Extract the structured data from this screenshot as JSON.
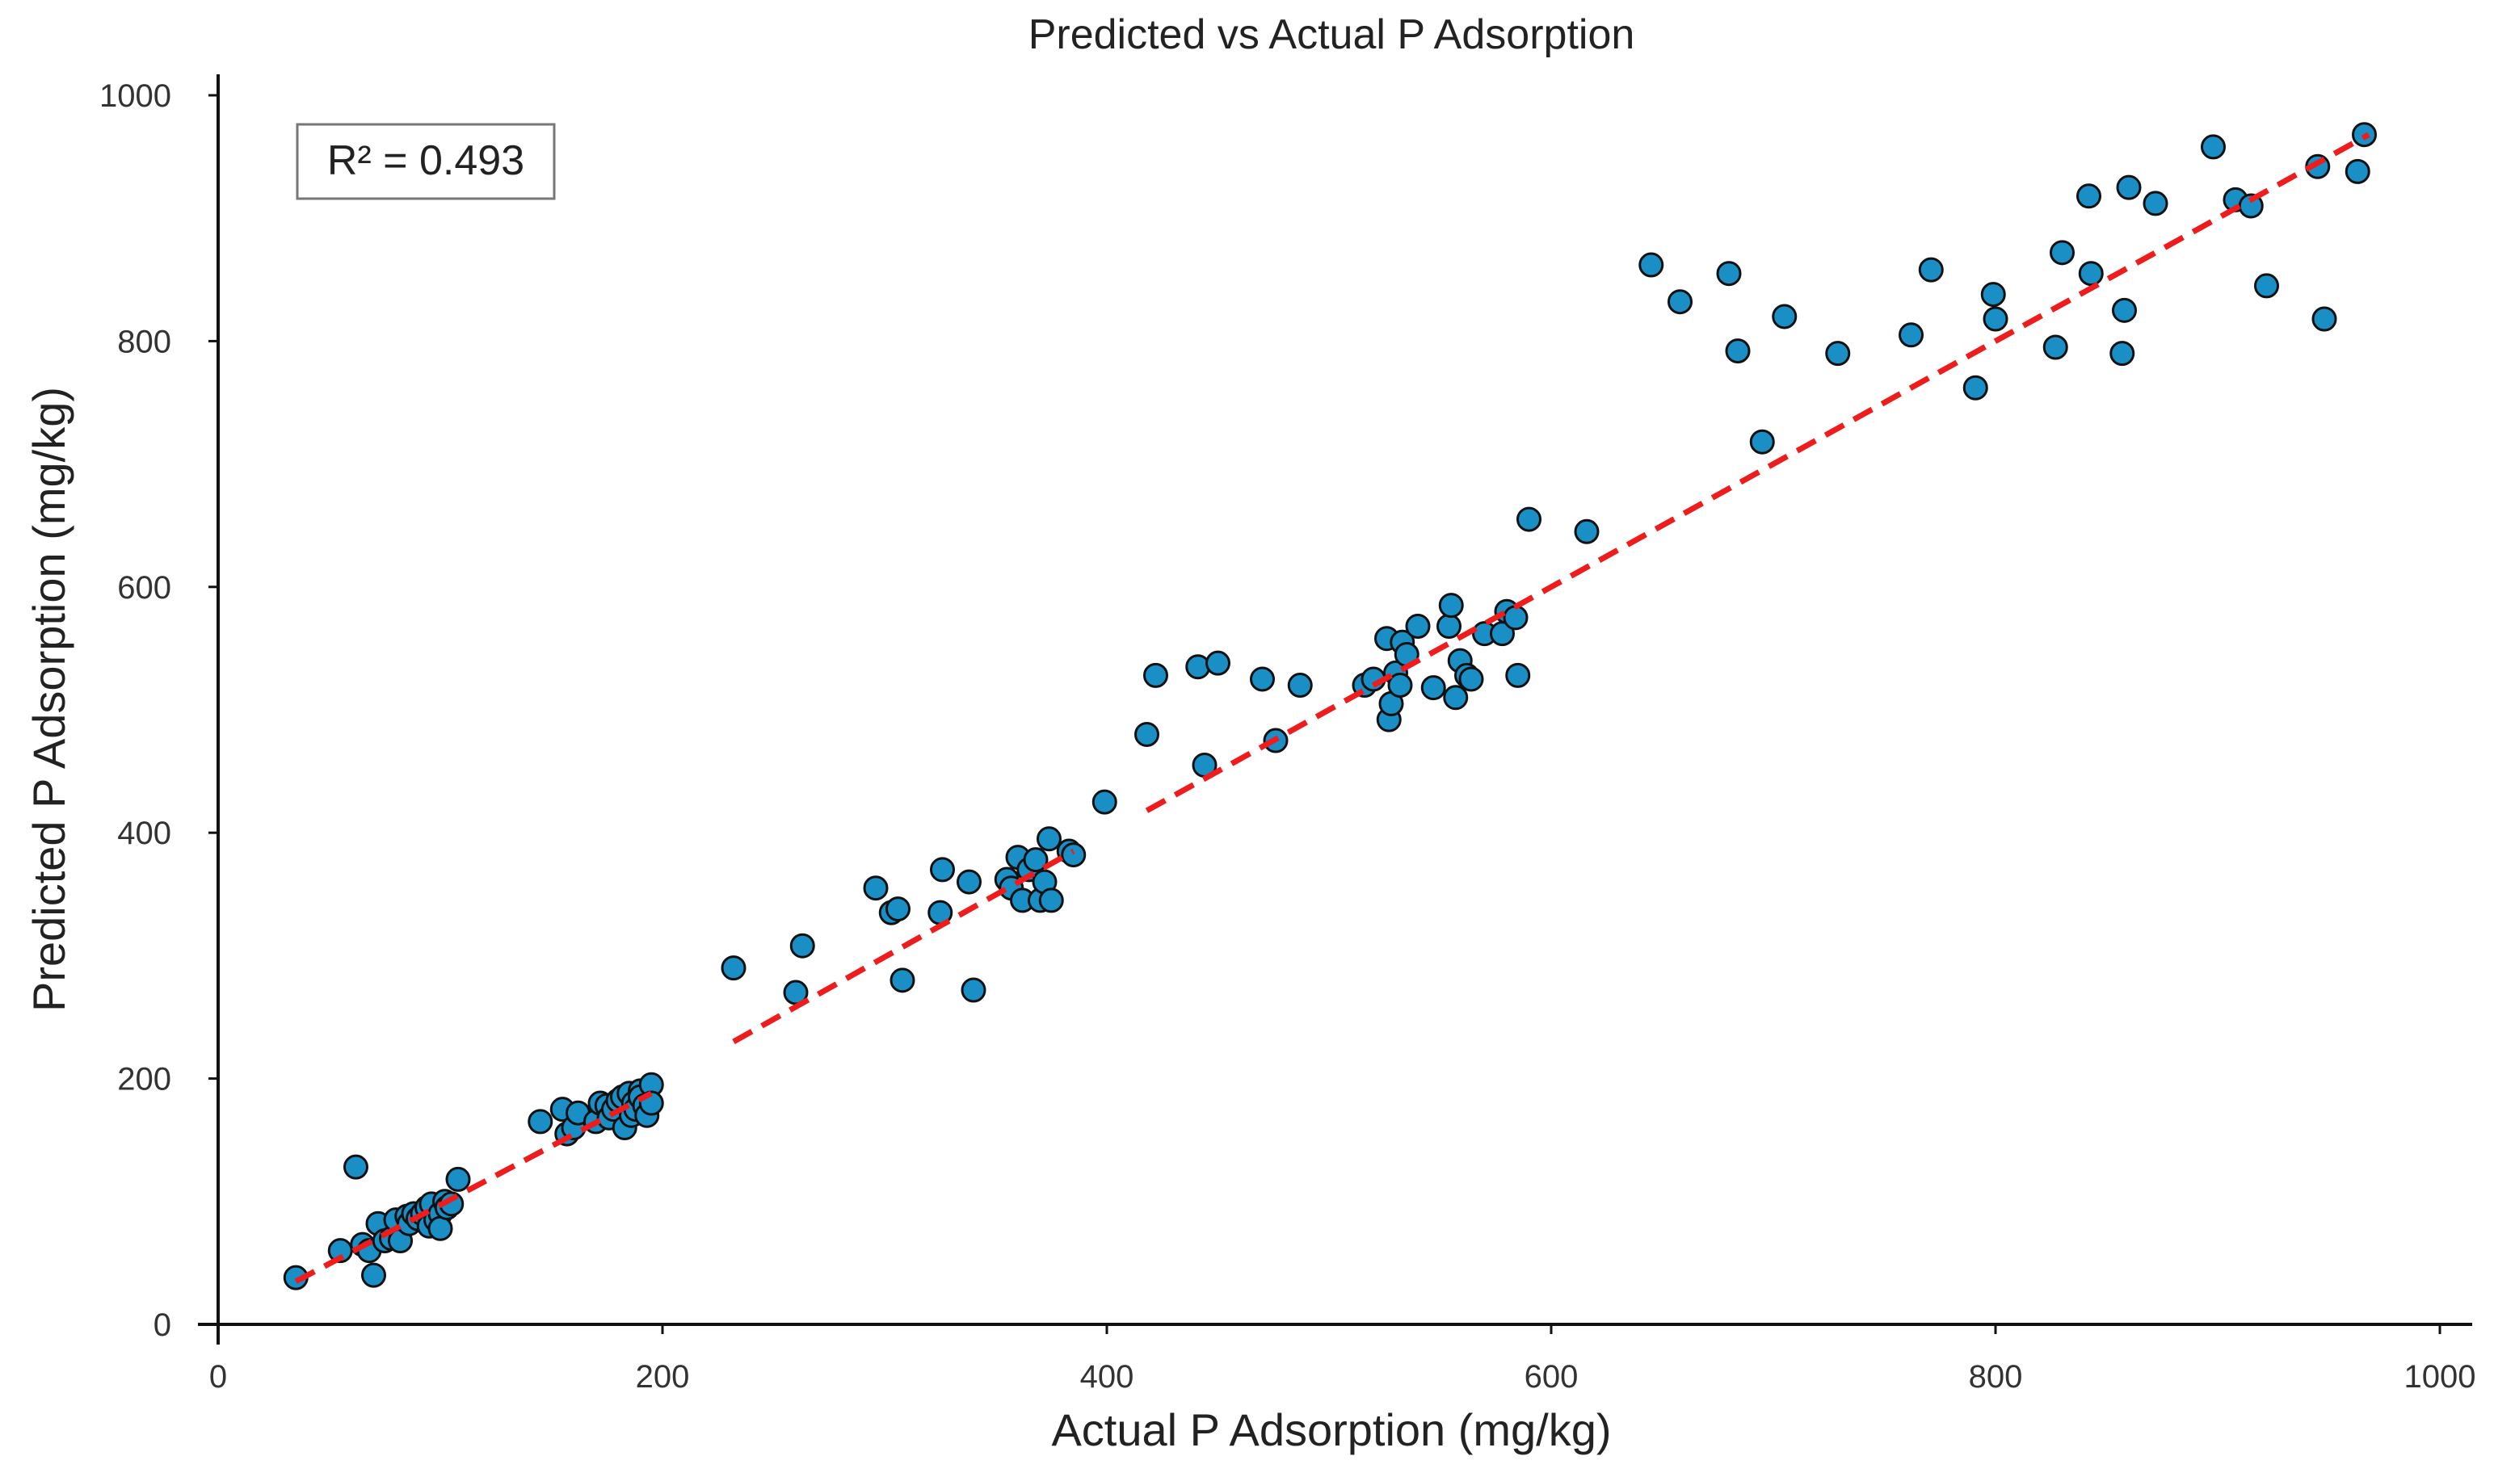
{
  "chart_data": {
    "type": "scatter",
    "title": "Predicted vs Actual P Adsorption",
    "xlabel": "Actual P Adsorption (mg/kg)",
    "ylabel": "Predicted P Adsorption (mg/kg)",
    "xlim": [
      0,
      1000
    ],
    "ylim": [
      0,
      1000
    ],
    "xticks": [
      "0",
      "200",
      "400",
      "600",
      "800",
      "1000"
    ],
    "yticks": [
      "0",
      "200",
      "400",
      "600",
      "800",
      "1000"
    ],
    "grid": false,
    "annotation": "R² = 0.493",
    "annotation_position": "top-left",
    "colors": {
      "points": "#1a8fc6",
      "point_edge": "#111111",
      "fit_line": "#ee1c1c"
    },
    "series": [
      {
        "kind": "points",
        "x": [
          35,
          55,
          62,
          65,
          68,
          70,
          72,
          75,
          78,
          80,
          82,
          85,
          86,
          88,
          90,
          92,
          94,
          95,
          96,
          98,
          100,
          100,
          102,
          103,
          105,
          108,
          145,
          155,
          157,
          160,
          162,
          170,
          172,
          175,
          176,
          178,
          180,
          182,
          183,
          185,
          186,
          187,
          188,
          190,
          190,
          192,
          193,
          195,
          195,
          232,
          260,
          263,
          296,
          303,
          306,
          308,
          325,
          326,
          338,
          340,
          355,
          357,
          360,
          362,
          365,
          368,
          370,
          372,
          374,
          375,
          383,
          385,
          399,
          418,
          422,
          441,
          444,
          450,
          470,
          476,
          487,
          516,
          520,
          526,
          527,
          528,
          530,
          532,
          533,
          535,
          540,
          547,
          554,
          555,
          557,
          559,
          562,
          564,
          570,
          578,
          580,
          584,
          585,
          590,
          616,
          645,
          658,
          680,
          684,
          695,
          705,
          729,
          762,
          771,
          791,
          799,
          800,
          827,
          830,
          842,
          843,
          857,
          858,
          860,
          872,
          898,
          908,
          915,
          922,
          945,
          948,
          963,
          966
        ],
        "y": [
          38,
          60,
          128,
          65,
          60,
          40,
          82,
          68,
          70,
          85,
          68,
          88,
          82,
          90,
          86,
          90,
          95,
          80,
          98,
          85,
          90,
          78,
          100,
          95,
          98,
          118,
          165,
          175,
          155,
          160,
          172,
          165,
          180,
          178,
          168,
          175,
          182,
          185,
          160,
          188,
          170,
          180,
          175,
          190,
          185,
          178,
          170,
          195,
          180,
          290,
          270,
          308,
          355,
          335,
          338,
          280,
          335,
          370,
          360,
          272,
          362,
          355,
          380,
          345,
          370,
          378,
          345,
          360,
          395,
          345,
          385,
          382,
          425,
          480,
          528,
          535,
          455,
          538,
          525,
          475,
          520,
          520,
          525,
          558,
          492,
          505,
          530,
          520,
          555,
          545,
          568,
          518,
          568,
          585,
          510,
          540,
          528,
          525,
          562,
          562,
          580,
          575,
          528,
          655,
          645,
          862,
          832,
          855,
          792,
          718,
          820,
          790,
          805,
          858,
          762,
          838,
          818,
          795,
          872,
          918,
          855,
          790,
          825,
          925,
          912,
          958,
          915,
          910,
          845,
          942,
          818,
          938,
          968
        ]
      },
      {
        "kind": "fit-line-segments",
        "segments": [
          {
            "x": [
              35,
              195
            ],
            "y": [
              35,
              188
            ]
          },
          {
            "x": [
              232,
              385
            ],
            "y": [
              230,
              385
            ]
          },
          {
            "x": [
              418,
              968
            ],
            "y": [
              418,
              968
            ]
          }
        ]
      }
    ]
  }
}
